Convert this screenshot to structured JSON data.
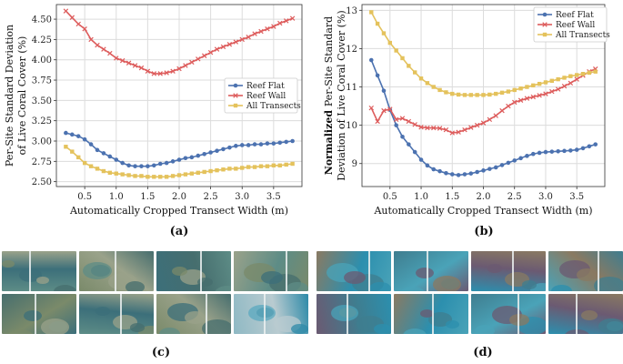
{
  "chart_data": [
    {
      "panel": "(a)",
      "type": "line",
      "title": "",
      "xlabel": "Automatically Cropped Transect Width (m)",
      "ylabel": [
        "Per-Site Standard Deviation",
        "of Live Coral Cover (%)"
      ],
      "xlim": [
        0.05,
        3.95
      ],
      "ylim": [
        2.44,
        4.68
      ],
      "xticks": [
        "0.5",
        "1.0",
        "1.5",
        "2.0",
        "2.5",
        "3.0",
        "3.5"
      ],
      "yticks": [
        "2.50",
        "2.75",
        "3.00",
        "3.25",
        "3.50",
        "3.75",
        "4.00",
        "4.25",
        "4.50"
      ],
      "legend_position": "center-right",
      "x": [
        0.2,
        0.3,
        0.4,
        0.5,
        0.6,
        0.7,
        0.8,
        0.9,
        1.0,
        1.1,
        1.2,
        1.3,
        1.4,
        1.5,
        1.6,
        1.7,
        1.8,
        1.9,
        2.0,
        2.1,
        2.2,
        2.3,
        2.4,
        2.5,
        2.6,
        2.7,
        2.8,
        2.9,
        3.0,
        3.1,
        3.2,
        3.3,
        3.4,
        3.5,
        3.6,
        3.7,
        3.8
      ],
      "series": [
        {
          "name": "Reef Flat",
          "color": "#4c72b0",
          "marker": "circle",
          "values": [
            3.1,
            3.08,
            3.06,
            3.02,
            2.96,
            2.89,
            2.85,
            2.81,
            2.77,
            2.73,
            2.7,
            2.69,
            2.69,
            2.69,
            2.7,
            2.72,
            2.73,
            2.75,
            2.77,
            2.79,
            2.8,
            2.82,
            2.84,
            2.86,
            2.88,
            2.9,
            2.92,
            2.94,
            2.95,
            2.95,
            2.96,
            2.96,
            2.97,
            2.97,
            2.98,
            2.99,
            3.0
          ]
        },
        {
          "name": "Reef Wall",
          "color": "#dd5c5c",
          "marker": "x",
          "values": [
            4.6,
            4.52,
            4.44,
            4.38,
            4.25,
            4.18,
            4.13,
            4.08,
            4.02,
            3.99,
            3.96,
            3.93,
            3.9,
            3.86,
            3.83,
            3.83,
            3.84,
            3.86,
            3.89,
            3.93,
            3.97,
            4.01,
            4.05,
            4.09,
            4.13,
            4.16,
            4.19,
            4.22,
            4.25,
            4.28,
            4.32,
            4.35,
            4.38,
            4.41,
            4.45,
            4.48,
            4.51
          ]
        },
        {
          "name": "All Transects",
          "color": "#e4c25c",
          "marker": "square",
          "values": [
            2.93,
            2.87,
            2.8,
            2.73,
            2.69,
            2.66,
            2.63,
            2.61,
            2.6,
            2.59,
            2.58,
            2.57,
            2.57,
            2.56,
            2.56,
            2.56,
            2.56,
            2.57,
            2.58,
            2.59,
            2.6,
            2.61,
            2.62,
            2.63,
            2.64,
            2.65,
            2.66,
            2.66,
            2.67,
            2.68,
            2.68,
            2.69,
            2.69,
            2.7,
            2.7,
            2.71,
            2.72
          ]
        }
      ]
    },
    {
      "panel": "(b)",
      "type": "line",
      "title": "",
      "xlabel": "Automatically Cropped Transect Width (m)",
      "ylabel_bold": "Normalized",
      "ylabel": [
        "Per-Site Standard",
        "Deviation of Live Coral Cover (%)"
      ],
      "xlim": [
        0.05,
        3.95
      ],
      "ylim": [
        8.4,
        13.15
      ],
      "xticks": [
        "0.5",
        "1.0",
        "1.5",
        "2.0",
        "2.5",
        "3.0",
        "3.5"
      ],
      "yticks": [
        "9",
        "10",
        "11",
        "12",
        "13"
      ],
      "legend_position": "top-right",
      "x": [
        0.2,
        0.3,
        0.4,
        0.5,
        0.6,
        0.7,
        0.8,
        0.9,
        1.0,
        1.1,
        1.2,
        1.3,
        1.4,
        1.5,
        1.6,
        1.7,
        1.8,
        1.9,
        2.0,
        2.1,
        2.2,
        2.3,
        2.4,
        2.5,
        2.6,
        2.7,
        2.8,
        2.9,
        3.0,
        3.1,
        3.2,
        3.3,
        3.4,
        3.5,
        3.6,
        3.7,
        3.8
      ],
      "series": [
        {
          "name": "Reef Flat",
          "color": "#4c72b0",
          "marker": "circle",
          "values": [
            11.7,
            11.3,
            10.9,
            10.4,
            10.0,
            9.7,
            9.5,
            9.3,
            9.1,
            8.95,
            8.85,
            8.8,
            8.75,
            8.72,
            8.7,
            8.72,
            8.74,
            8.78,
            8.82,
            8.86,
            8.9,
            8.96,
            9.02,
            9.08,
            9.14,
            9.2,
            9.25,
            9.28,
            9.3,
            9.31,
            9.32,
            9.33,
            9.34,
            9.36,
            9.4,
            9.45,
            9.5
          ]
        },
        {
          "name": "Reef Wall",
          "color": "#dd5c5c",
          "marker": "x",
          "values": [
            10.45,
            10.1,
            10.38,
            10.42,
            10.15,
            10.18,
            10.1,
            10.02,
            9.95,
            9.93,
            9.93,
            9.92,
            9.88,
            9.8,
            9.82,
            9.88,
            9.94,
            10.0,
            10.06,
            10.15,
            10.25,
            10.38,
            10.5,
            10.6,
            10.65,
            10.7,
            10.74,
            10.78,
            10.82,
            10.88,
            10.94,
            11.02,
            11.1,
            11.2,
            11.3,
            11.4,
            11.47
          ]
        },
        {
          "name": "All Transects",
          "color": "#e4c25c",
          "marker": "square",
          "values": [
            12.95,
            12.65,
            12.4,
            12.15,
            11.95,
            11.75,
            11.55,
            11.38,
            11.22,
            11.1,
            11.0,
            10.92,
            10.86,
            10.82,
            10.8,
            10.79,
            10.79,
            10.79,
            10.79,
            10.8,
            10.82,
            10.85,
            10.88,
            10.92,
            10.96,
            11.0,
            11.04,
            11.08,
            11.12,
            11.16,
            11.2,
            11.24,
            11.28,
            11.31,
            11.34,
            11.37,
            11.4
          ]
        }
      ]
    }
  ],
  "captions": {
    "c": "(c)",
    "d": "(d)"
  },
  "photos_c": [
    "coral-flat",
    "coral-flat",
    "coral-flat",
    "coral-flat",
    "coral-flat",
    "coral-flat",
    "coral-flat",
    "coral-table"
  ],
  "photos_d": [
    "coral-wall",
    "coral-wall",
    "coral-wall",
    "coral-wall",
    "coral-wall",
    "coral-wall",
    "coral-wall",
    "coral-wall"
  ],
  "colors": {
    "flat_water": "#3f8fa3",
    "wall_water": "#2f8fa8",
    "grid": "#dcdcdc"
  }
}
